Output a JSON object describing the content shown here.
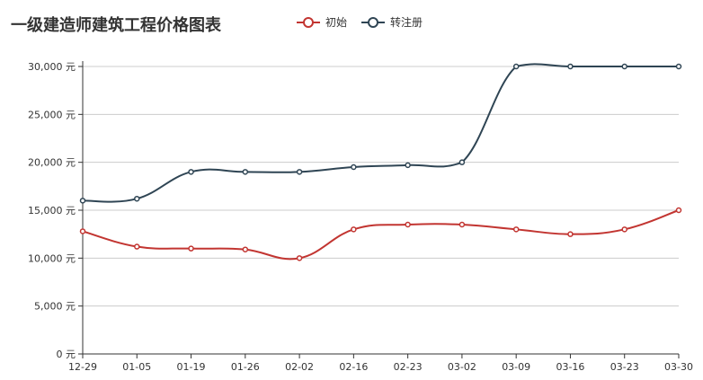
{
  "chart_data": {
    "type": "line",
    "title": "一级建造师建筑工程价格图表",
    "categories": [
      "12-29",
      "01-05",
      "01-19",
      "01-26",
      "02-02",
      "02-16",
      "02-23",
      "03-02",
      "03-09",
      "03-16",
      "03-23",
      "03-30"
    ],
    "series": [
      {
        "name": "初始",
        "color": "#c23531",
        "values": [
          12800,
          11200,
          11000,
          10900,
          10000,
          13000,
          13500,
          13500,
          13000,
          12500,
          13000,
          15000
        ]
      },
      {
        "name": "转注册",
        "color": "#2f4554",
        "values": [
          16000,
          16200,
          19000,
          19000,
          19000,
          19500,
          19700,
          20000,
          30000,
          30000,
          30000,
          30000
        ]
      }
    ],
    "yticks": [
      "0 元",
      "5,000 元",
      "10,000 元",
      "15,000 元",
      "20,000 元",
      "25,000 元",
      "30,000 元"
    ],
    "ylim": [
      0,
      30000
    ],
    "grid": true,
    "legend_position": "top"
  }
}
